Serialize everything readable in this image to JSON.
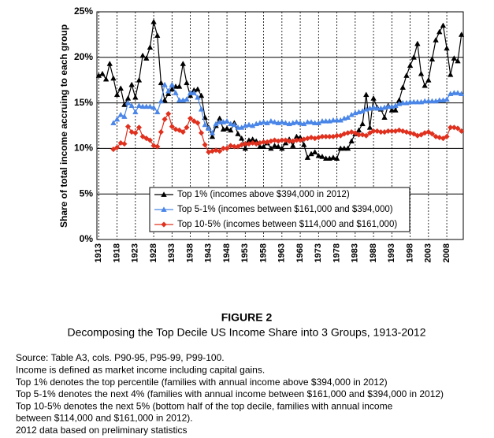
{
  "chart_data": {
    "type": "line",
    "title": "FIGURE 2",
    "subtitle": "Decomposing the Top Decile US Income Share into 3 Groups, 1913-2012",
    "y_label": "Share of total income accruing to each group",
    "notes": [
      "Source: Table A3, cols. P90-95, P95-99, P99-100.",
      "Income is defined as market income including capital gains.",
      "Top 1% denotes the top percentile (families with annual income above $394,000 in 2012)",
      "Top 5-1% denotes the next 4% (families with annual income between $161,000 and $394,000 in 2012)",
      "Top 10-5% denotes the next 5% (bottom half of the top decile, families with annual income",
      "between $114,000 and $161,000 in 2012).",
      "2012 data based on preliminary statistics"
    ],
    "x": [
      1913,
      1914,
      1915,
      1916,
      1917,
      1918,
      1919,
      1920,
      1921,
      1922,
      1923,
      1924,
      1925,
      1926,
      1927,
      1928,
      1929,
      1930,
      1931,
      1932,
      1933,
      1934,
      1935,
      1936,
      1937,
      1938,
      1939,
      1940,
      1941,
      1942,
      1943,
      1944,
      1945,
      1946,
      1947,
      1948,
      1949,
      1950,
      1951,
      1952,
      1953,
      1954,
      1955,
      1956,
      1957,
      1958,
      1959,
      1960,
      1961,
      1962,
      1963,
      1964,
      1965,
      1966,
      1967,
      1968,
      1969,
      1970,
      1971,
      1972,
      1973,
      1974,
      1975,
      1976,
      1977,
      1978,
      1979,
      1980,
      1981,
      1982,
      1983,
      1984,
      1985,
      1986,
      1987,
      1988,
      1989,
      1990,
      1991,
      1992,
      1993,
      1994,
      1995,
      1996,
      1997,
      1998,
      1999,
      2000,
      2001,
      2002,
      2003,
      2004,
      2005,
      2006,
      2007,
      2008,
      2009,
      2010,
      2011,
      2012
    ],
    "series": [
      {
        "name": "Top 1% (incomes above $394,000 in 2012)",
        "color": "#000000",
        "marker": "triangle",
        "values": [
          18.0,
          18.2,
          17.6,
          19.3,
          17.7,
          15.9,
          16.6,
          14.8,
          15.5,
          17.0,
          15.6,
          17.5,
          20.2,
          19.9,
          21.1,
          23.9,
          22.4,
          17.2,
          15.3,
          16.0,
          16.5,
          16.8,
          16.8,
          19.3,
          17.2,
          15.8,
          16.4,
          16.5,
          15.8,
          13.4,
          12.3,
          11.3,
          12.5,
          13.3,
          12.1,
          12.2,
          12.0,
          12.8,
          11.6,
          11.1,
          10.0,
          10.9,
          11.0,
          10.8,
          10.2,
          10.2,
          10.6,
          10.0,
          10.3,
          10.2,
          10.0,
          10.6,
          11.0,
          10.3,
          11.3,
          11.2,
          10.4,
          9.0,
          9.4,
          9.6,
          9.2,
          9.1,
          8.9,
          8.9,
          9.0,
          8.9,
          10.0,
          10.0,
          10.0,
          10.8,
          11.6,
          12.0,
          12.7,
          15.9,
          12.3,
          15.5,
          14.5,
          14.3,
          13.4,
          14.7,
          14.2,
          14.2,
          15.3,
          16.7,
          18.0,
          19.1,
          20.0,
          21.5,
          18.2,
          16.9,
          17.5,
          19.8,
          21.9,
          22.8,
          23.5,
          21.0,
          18.1,
          19.9,
          19.6,
          22.5
        ]
      },
      {
        "name": "Top 5-1% (incomes between $161,000 and $394,000)",
        "color": "#4a86e8",
        "marker": "triangle",
        "values": [
          null,
          null,
          null,
          null,
          12.8,
          13.2,
          13.7,
          13.5,
          15.0,
          14.7,
          14.0,
          14.7,
          14.6,
          14.6,
          14.6,
          14.5,
          14.0,
          15.2,
          17.0,
          16.3,
          17.0,
          16.1,
          15.3,
          15.3,
          15.4,
          16.1,
          16.1,
          15.6,
          14.3,
          12.6,
          12.2,
          11.7,
          12.7,
          12.9,
          12.9,
          13.0,
          12.7,
          12.6,
          12.3,
          12.3,
          12.5,
          12.6,
          12.5,
          12.7,
          12.8,
          12.9,
          12.8,
          13.0,
          12.9,
          12.8,
          12.9,
          12.8,
          12.7,
          12.8,
          12.9,
          12.8,
          12.7,
          12.9,
          12.9,
          12.8,
          12.8,
          13.0,
          13.0,
          13.0,
          13.1,
          13.1,
          13.1,
          13.3,
          13.4,
          13.7,
          13.9,
          14.0,
          14.1,
          14.3,
          14.4,
          14.5,
          14.4,
          14.4,
          14.5,
          14.6,
          14.6,
          14.7,
          14.9,
          15.0,
          15.0,
          15.1,
          15.1,
          15.1,
          15.1,
          15.2,
          15.2,
          15.2,
          15.2,
          15.3,
          15.3,
          15.4,
          16.0,
          16.1,
          16.1,
          16.0
        ]
      },
      {
        "name": "Top 10-5% (incomes between $114,000 and $161,000)",
        "color": "#e0301e",
        "marker": "diamond",
        "values": [
          null,
          null,
          null,
          null,
          9.9,
          10.1,
          10.6,
          10.5,
          12.4,
          11.8,
          11.7,
          12.3,
          11.3,
          11.1,
          10.9,
          10.3,
          10.2,
          11.8,
          13.2,
          13.8,
          12.4,
          12.1,
          12.0,
          11.8,
          12.3,
          13.3,
          13.0,
          12.8,
          11.7,
          10.4,
          9.6,
          9.7,
          9.8,
          9.7,
          10.0,
          10.0,
          10.3,
          10.2,
          10.2,
          10.4,
          10.5,
          10.5,
          10.6,
          10.5,
          10.6,
          10.7,
          10.7,
          10.8,
          10.9,
          10.8,
          10.9,
          10.9,
          10.8,
          10.8,
          10.9,
          10.9,
          11.0,
          11.1,
          11.2,
          11.1,
          11.2,
          11.3,
          11.3,
          11.3,
          11.3,
          11.4,
          11.4,
          11.6,
          11.7,
          11.8,
          11.7,
          11.5,
          11.5,
          11.4,
          11.7,
          11.9,
          11.9,
          11.8,
          11.8,
          11.9,
          11.9,
          11.9,
          12.0,
          11.9,
          11.8,
          11.7,
          11.6,
          11.4,
          11.5,
          11.7,
          11.8,
          11.6,
          11.3,
          11.2,
          11.1,
          11.3,
          12.3,
          12.3,
          12.2,
          11.9
        ]
      }
    ],
    "xlim": [
      1912.5,
      2012.5
    ],
    "xticks": [
      1913,
      1918,
      1923,
      1928,
      1933,
      1938,
      1943,
      1948,
      1953,
      1958,
      1963,
      1968,
      1973,
      1978,
      1983,
      1988,
      1993,
      1998,
      2003,
      2008
    ],
    "ylim": [
      0,
      25
    ],
    "yticks": [
      {
        "value": 0,
        "label": "0%"
      },
      {
        "value": 5,
        "label": "5%"
      },
      {
        "value": 10,
        "label": "10%"
      },
      {
        "value": 15,
        "label": "15%"
      },
      {
        "value": 20,
        "label": "20%"
      },
      {
        "value": 25,
        "label": "25%"
      }
    ],
    "grid": true,
    "legend_position": "bottom"
  }
}
